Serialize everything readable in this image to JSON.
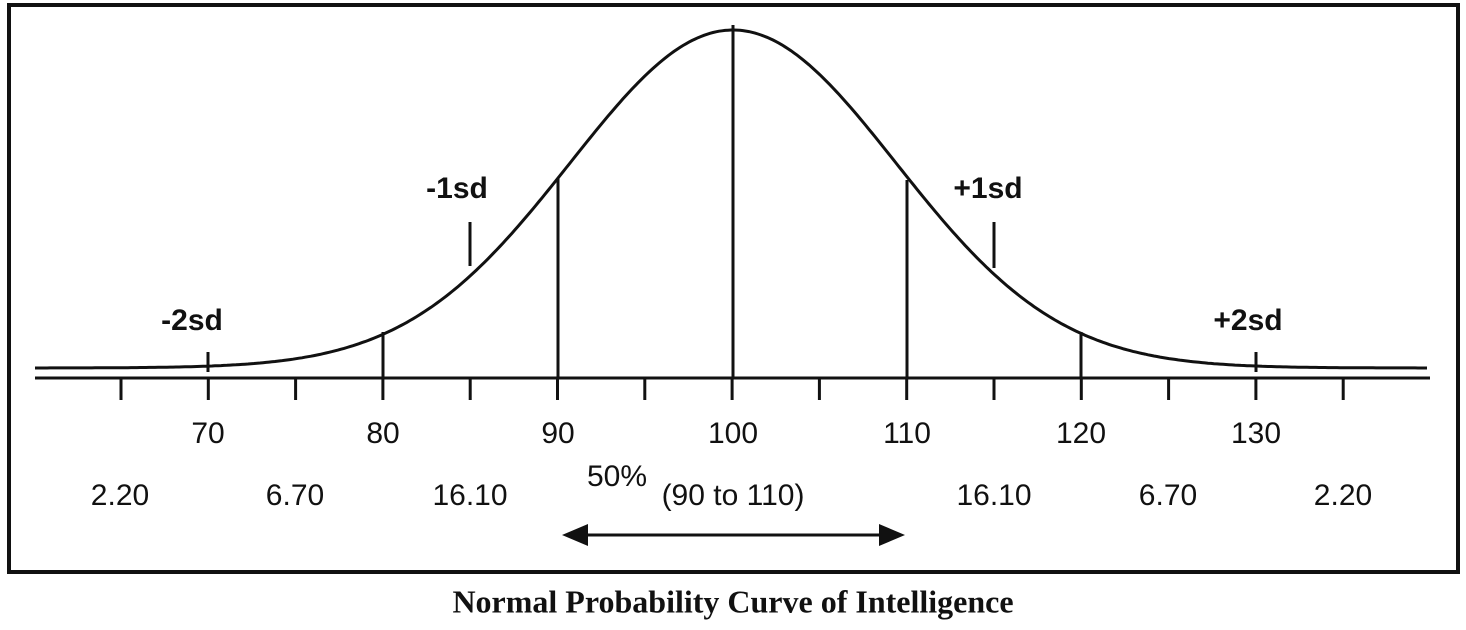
{
  "title": "Normal Probability Curve of Intelligence",
  "sd_labels": [
    "-2sd",
    "-1sd",
    "+1sd",
    "+2sd"
  ],
  "scores": [
    "70",
    "80",
    "90",
    "100",
    "110",
    "120",
    "130"
  ],
  "percentages": [
    "2.20",
    "6.70",
    "16.10",
    "16.10",
    "6.70",
    "2.20"
  ],
  "middle": {
    "percent": "50%",
    "range": "(90 to 110)"
  }
}
